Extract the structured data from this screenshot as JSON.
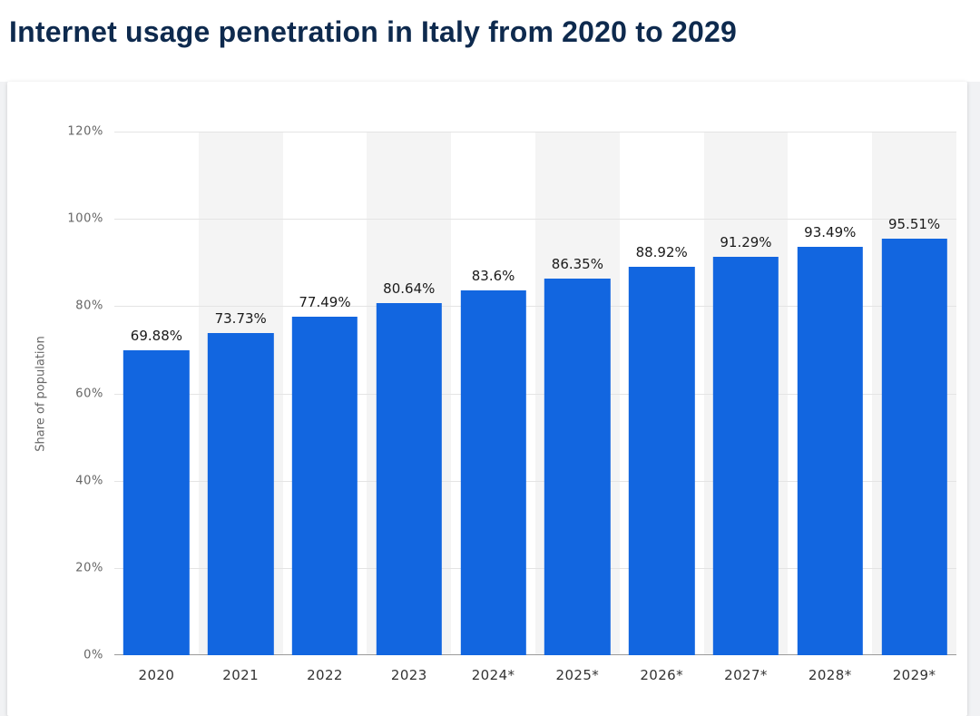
{
  "header": {
    "title": "Internet usage penetration in Italy from 2020 to 2029"
  },
  "chart_data": {
    "type": "bar",
    "title": "Internet usage penetration in Italy from 2020 to 2029",
    "categories": [
      "2020",
      "2021",
      "2022",
      "2023",
      "2024*",
      "2025*",
      "2026*",
      "2027*",
      "2028*",
      "2029*"
    ],
    "values": [
      69.88,
      73.73,
      77.49,
      80.64,
      83.6,
      86.35,
      88.92,
      91.29,
      93.49,
      95.51
    ],
    "value_labels": [
      "69.88%",
      "73.73%",
      "77.49%",
      "80.64%",
      "83.6%",
      "86.35%",
      "88.92%",
      "91.29%",
      "93.49%",
      "95.51%"
    ],
    "xlabel": "",
    "ylabel": "Share of population",
    "ylim": [
      0,
      120
    ],
    "yticks": [
      120,
      100,
      80,
      60,
      40,
      20,
      0
    ],
    "ytick_suffix": "%",
    "grid": true,
    "legend": false,
    "bar_color": "#1266e0",
    "stripe_color": "#f4f4f4",
    "title_color": "#0e2a4e"
  }
}
